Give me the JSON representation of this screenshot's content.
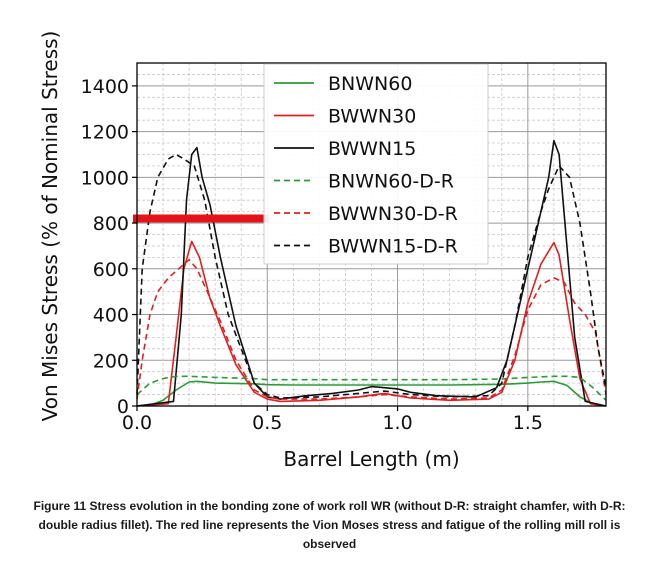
{
  "caption": "Figure 11 Stress evolution in the bonding zone of work roll WR (without D-R: straight chamfer, with D-R: double radius fillet). The red line represents the Vion Moses stress and fatigue of the rolling mill roll is observed",
  "chart_data": {
    "type": "line",
    "title": "",
    "xlabel": "Barrel Length (m)",
    "ylabel": "Von Mises Stress (% of Nominal Stress)",
    "xlim": [
      0,
      1.8
    ],
    "ylim": [
      0,
      1500
    ],
    "xticks": [
      0.0,
      0.5,
      1.0,
      1.5
    ],
    "xtick_labels": [
      "0.0",
      "0.5",
      "1.0",
      "1.5"
    ],
    "yticks": [
      0,
      200,
      400,
      600,
      800,
      1000,
      1200,
      1400
    ],
    "ytick_labels": [
      "0",
      "200",
      "400",
      "600",
      "800",
      "1000",
      "1200",
      "1400"
    ],
    "grid": true,
    "legend_position": "top-center",
    "highlight_line": {
      "y": 820,
      "x_end": 0.5,
      "color": "#e3121b"
    },
    "series": [
      {
        "name": "BNWN60",
        "color": "#2e9a3a",
        "dash": "solid",
        "x": [
          0,
          0.06,
          0.1,
          0.15,
          0.2,
          0.23,
          0.3,
          0.45,
          0.5,
          0.6,
          1.2,
          1.4,
          1.5,
          1.55,
          1.6,
          1.65,
          1.7,
          1.75,
          1.8
        ],
        "y": [
          0,
          8,
          25,
          70,
          105,
          108,
          100,
          97,
          93,
          92,
          92,
          95,
          100,
          105,
          108,
          90,
          40,
          10,
          0
        ]
      },
      {
        "name": "BWWN30",
        "color": "#e02020",
        "dash": "solid",
        "x": [
          0,
          0.12,
          0.15,
          0.18,
          0.21,
          0.24,
          0.28,
          0.32,
          0.38,
          0.45,
          0.5,
          0.55,
          0.7,
          0.85,
          0.95,
          1.05,
          1.2,
          1.35,
          1.4,
          1.45,
          1.5,
          1.55,
          1.6,
          1.62,
          1.66,
          1.7,
          1.74,
          1.8
        ],
        "y": [
          0,
          10,
          300,
          600,
          720,
          650,
          470,
          350,
          180,
          60,
          30,
          20,
          25,
          40,
          55,
          35,
          25,
          30,
          60,
          200,
          450,
          620,
          715,
          660,
          380,
          120,
          10,
          0
        ]
      },
      {
        "name": "BWWN15",
        "color": "#111111",
        "dash": "solid",
        "x": [
          0,
          0.14,
          0.17,
          0.19,
          0.21,
          0.23,
          0.25,
          0.28,
          0.32,
          0.38,
          0.45,
          0.5,
          0.55,
          0.65,
          0.75,
          0.85,
          0.9,
          0.95,
          1.0,
          1.05,
          1.15,
          1.3,
          1.38,
          1.42,
          1.48,
          1.54,
          1.58,
          1.6,
          1.62,
          1.65,
          1.68,
          1.72,
          1.8
        ],
        "y": [
          0,
          20,
          400,
          900,
          1100,
          1130,
          1000,
          880,
          650,
          350,
          100,
          40,
          30,
          45,
          55,
          70,
          85,
          80,
          75,
          60,
          45,
          40,
          80,
          200,
          500,
          800,
          1000,
          1160,
          1100,
          700,
          300,
          20,
          0
        ]
      },
      {
        "name": "BNWN60-D-R",
        "color": "#2e9a3a",
        "dash": "dashed",
        "x": [
          0,
          0.05,
          0.1,
          0.15,
          0.2,
          0.3,
          0.45,
          0.5,
          0.6,
          1.2,
          1.4,
          1.5,
          1.6,
          1.65,
          1.7,
          1.75,
          1.8
        ],
        "y": [
          50,
          100,
          120,
          130,
          130,
          125,
          120,
          115,
          115,
          115,
          118,
          125,
          130,
          130,
          125,
          80,
          25
        ]
      },
      {
        "name": "BWWN30-D-R",
        "color": "#e02020",
        "dash": "dashed",
        "x": [
          0,
          0.02,
          0.05,
          0.08,
          0.12,
          0.16,
          0.2,
          0.23,
          0.27,
          0.32,
          0.38,
          0.45,
          0.5,
          0.55,
          0.7,
          0.85,
          0.95,
          1.05,
          1.2,
          1.35,
          1.4,
          1.45,
          1.5,
          1.55,
          1.6,
          1.64,
          1.68,
          1.72,
          1.76,
          1.8
        ],
        "y": [
          30,
          200,
          400,
          500,
          560,
          600,
          640,
          600,
          500,
          370,
          200,
          70,
          40,
          30,
          30,
          40,
          50,
          40,
          30,
          35,
          70,
          220,
          420,
          530,
          560,
          540,
          450,
          400,
          320,
          50
        ]
      },
      {
        "name": "BWWN15-D-R",
        "color": "#111111",
        "dash": "dashed",
        "x": [
          0,
          0.02,
          0.05,
          0.08,
          0.12,
          0.15,
          0.18,
          0.22,
          0.26,
          0.3,
          0.35,
          0.4,
          0.45,
          0.5,
          0.55,
          0.7,
          0.85,
          0.95,
          1.05,
          1.2,
          1.35,
          1.4,
          1.45,
          1.5,
          1.55,
          1.58,
          1.62,
          1.66,
          1.7,
          1.74,
          1.77,
          1.8
        ],
        "y": [
          50,
          600,
          850,
          1000,
          1080,
          1100,
          1080,
          1050,
          900,
          650,
          400,
          250,
          100,
          50,
          35,
          40,
          55,
          65,
          50,
          40,
          45,
          100,
          350,
          650,
          850,
          950,
          1050,
          1000,
          800,
          500,
          250,
          80
        ]
      }
    ]
  }
}
